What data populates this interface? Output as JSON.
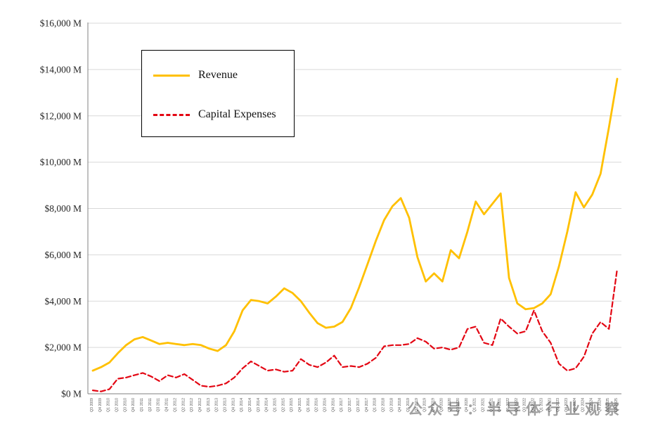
{
  "watermark": "公众号：半导体行业观察",
  "legend": {
    "revenue_label": "Revenue",
    "capex_label": "Capital Expenses"
  },
  "colors": {
    "revenue": "#FFC000",
    "capex": "#E30613",
    "gridline": "#D9D9D9",
    "axis": "#808080",
    "tick_text": "#262626"
  },
  "chart_data": {
    "type": "line",
    "title": "",
    "xlabel": "",
    "ylabel": "",
    "ylim": [
      0,
      16000
    ],
    "ytick_step": 2000,
    "grid": true,
    "legend_position": "top-left",
    "ytick_labels": [
      "$0 M",
      "$2,000 M",
      "$4,000 M",
      "$6,000 M",
      "$8,000 M",
      "$10,000 M",
      "$12,000 M",
      "$14,000 M",
      "$16,000 M"
    ],
    "categories": [
      "Q3 2009",
      "Q4 2009",
      "Q1 2010",
      "Q2 2010",
      "Q3 2010",
      "Q4 2010",
      "Q1 2011",
      "Q2 2011",
      "Q3 2011",
      "Q4 2011",
      "Q1 2012",
      "Q2 2012",
      "Q3 2012",
      "Q4 2012",
      "Q1 2013",
      "Q2 2013",
      "Q3 2013",
      "Q4 2013",
      "Q1 2014",
      "Q2 2014",
      "Q3 2014",
      "Q4 2014",
      "Q1 2015",
      "Q2 2015",
      "Q3 2015",
      "Q4 2015",
      "Q1 2016",
      "Q2 2016",
      "Q3 2016",
      "Q4 2016",
      "Q1 2017",
      "Q2 2017",
      "Q3 2017",
      "Q4 2017",
      "Q1 2018",
      "Q2 2018",
      "Q3 2018",
      "Q4 2018",
      "Q1 2019",
      "Q2 2019",
      "Q3 2019",
      "Q4 2019",
      "Q1 2020",
      "Q2 2020",
      "Q3 2020",
      "Q4 2020",
      "Q1 2021",
      "Q2 2021",
      "Q3 2021",
      "Q4 2021",
      "Q1 2022",
      "Q2 2022",
      "Q3 2022",
      "Q4 2022",
      "Q1 2023",
      "Q2 2023",
      "Q3 2023",
      "Q4 2023",
      "Q1 2024",
      "Q2 2024",
      "Q3 2024",
      "Q4 2024",
      "Q1 2025",
      "Q2 2025"
    ],
    "series": [
      {
        "name": "Revenue",
        "color": "#FFC000",
        "style": "solid",
        "values": [
          1000,
          1150,
          1350,
          1750,
          2100,
          2350,
          2450,
          2300,
          2150,
          2200,
          2150,
          2100,
          2150,
          2100,
          1950,
          1850,
          2100,
          2700,
          3600,
          4050,
          4000,
          3900,
          4200,
          4550,
          4350,
          4000,
          3500,
          3050,
          2850,
          2900,
          3100,
          3700,
          4600,
          5600,
          6600,
          7500,
          8100,
          8450,
          7600,
          5900,
          4850,
          5200,
          4850,
          6200,
          5850,
          7000,
          8300,
          7750,
          8200,
          8650,
          5000,
          3900,
          3650,
          3700,
          3900,
          4300,
          5500,
          7000,
          8700,
          8050,
          8600,
          9500,
          11500,
          13600
        ]
      },
      {
        "name": "Capital Expenses",
        "color": "#E30613",
        "style": "dashed",
        "values": [
          150,
          100,
          200,
          650,
          700,
          800,
          900,
          750,
          550,
          800,
          700,
          850,
          600,
          350,
          300,
          350,
          450,
          700,
          1100,
          1400,
          1200,
          1000,
          1050,
          950,
          1000,
          1500,
          1250,
          1150,
          1350,
          1650,
          1150,
          1200,
          1150,
          1300,
          1550,
          2050,
          2100,
          2100,
          2150,
          2400,
          2250,
          1950,
          2000,
          1900,
          2000,
          2800,
          2900,
          2200,
          2100,
          3250,
          2900,
          2600,
          2700,
          3600,
          2700,
          2200,
          1300,
          1000,
          1100,
          1600,
          2600,
          3100,
          2800,
          5400
        ]
      }
    ]
  }
}
